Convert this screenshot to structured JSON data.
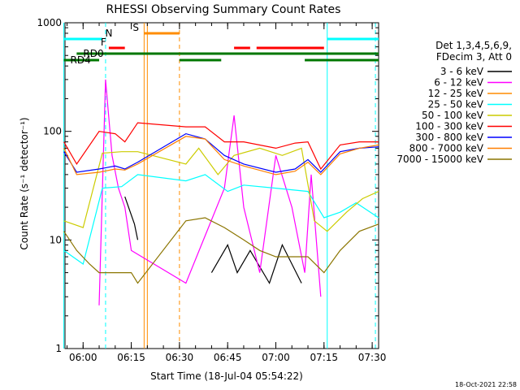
{
  "chart_data": {
    "type": "line",
    "title": "RHESSI Observing Summary Count Rates",
    "xlabel": "Start Time (18-Jul-04 05:54:22)",
    "ylabel": "Count Rate (s⁻¹ detector⁻¹)",
    "y_scale": "log",
    "ylim": [
      1,
      1000
    ],
    "xlim": [
      "05:54:22",
      "07:32:00"
    ],
    "x_ticks": [
      "06:00",
      "06:15",
      "06:30",
      "06:45",
      "07:00",
      "07:15",
      "07:30"
    ],
    "y_ticks": [
      "1",
      "10",
      "100",
      "1000"
    ],
    "legend_header": [
      "Det 1,3,4,5,6,9,",
      "FDecim 3, Att 0"
    ],
    "timestamp": "18-Oct-2021 22:58",
    "series": [
      {
        "name": "3 - 6 keV",
        "color": "#000000",
        "x": [
          "05:54",
          "06:05",
          "06:10",
          "06:13",
          "06:16",
          "06:17",
          "06:32",
          "06:40",
          "06:45",
          "06:48",
          "06:52",
          "06:58",
          "07:02",
          "07:08",
          "07:12",
          "07:14",
          "07:32"
        ],
        "y": [
          null,
          null,
          null,
          25,
          14,
          10,
          null,
          5,
          9,
          5,
          8,
          4,
          9,
          4,
          null,
          null,
          null
        ]
      },
      {
        "name": "6 - 12 keV",
        "color": "#ff00ff",
        "x": [
          "06:05",
          "06:07",
          "06:09",
          "06:11",
          "06:13",
          "06:15",
          "06:32",
          "06:44",
          "06:47",
          "06:50",
          "06:55",
          "07:00",
          "07:05",
          "07:09",
          "07:11",
          "07:14"
        ],
        "y": [
          2.5,
          300,
          60,
          30,
          20,
          8,
          4,
          30,
          140,
          20,
          5,
          60,
          20,
          5,
          40,
          3
        ]
      },
      {
        "name": "12 - 25 keV",
        "color": "#ff8c00",
        "x": [
          "05:54",
          "06:00",
          "06:05",
          "06:10",
          "06:15",
          "06:17"
        ],
        "y": [
          null,
          null,
          null,
          null,
          null,
          null
        ]
      },
      {
        "name": "25 - 50 keV",
        "color": "#00ffff",
        "x": [
          "05:54",
          "06:00",
          "06:06",
          "06:12",
          "06:17",
          "06:32",
          "06:38",
          "06:45",
          "06:50",
          "07:00",
          "07:10",
          "07:15",
          "07:20",
          "07:25",
          "07:32"
        ],
        "y": [
          8,
          6,
          30,
          31,
          40,
          35,
          40,
          28,
          32,
          30,
          28,
          16,
          18,
          22,
          16
        ]
      },
      {
        "name": "50 - 100 keV",
        "color": "#cccc00",
        "x": [
          "05:54",
          "06:00",
          "06:06",
          "06:12",
          "06:17",
          "06:32",
          "06:36",
          "06:42",
          "06:47",
          "06:55",
          "07:02",
          "07:08",
          "07:12",
          "07:16",
          "07:22",
          "07:27",
          "07:32"
        ],
        "y": [
          15,
          13,
          63,
          65,
          65,
          50,
          70,
          40,
          60,
          70,
          60,
          70,
          15,
          12,
          18,
          24,
          28
        ]
      },
      {
        "name": "100 - 300 keV",
        "color": "#ff0000",
        "x": [
          "05:54",
          "05:58",
          "06:05",
          "06:10",
          "06:13",
          "06:17",
          "06:32",
          "06:38",
          "06:44",
          "06:50",
          "07:00",
          "07:06",
          "07:10",
          "07:14",
          "07:20",
          "07:26",
          "07:32"
        ],
        "y": [
          80,
          50,
          100,
          95,
          80,
          120,
          110,
          110,
          80,
          80,
          70,
          78,
          80,
          45,
          75,
          80,
          80
        ]
      },
      {
        "name": "300 - 800 keV",
        "color": "#0000ff",
        "x": [
          "05:54",
          "05:58",
          "06:05",
          "06:10",
          "06:13",
          "06:17",
          "06:32",
          "06:38",
          "06:44",
          "06:50",
          "07:00",
          "07:06",
          "07:10",
          "07:14",
          "07:20",
          "07:26",
          "07:32"
        ],
        "y": [
          65,
          42,
          45,
          48,
          45,
          52,
          95,
          85,
          60,
          50,
          42,
          45,
          55,
          42,
          65,
          70,
          72
        ]
      },
      {
        "name": "800 - 7000 keV",
        "color": "#ff7f00",
        "x": [
          "05:54",
          "05:58",
          "06:05",
          "06:10",
          "06:13",
          "06:17",
          "06:32",
          "06:38",
          "06:44",
          "06:50",
          "07:00",
          "07:06",
          "07:10",
          "07:14",
          "07:20",
          "07:26",
          "07:32"
        ],
        "y": [
          70,
          40,
          42,
          45,
          44,
          50,
          90,
          85,
          55,
          48,
          40,
          43,
          52,
          40,
          62,
          70,
          75
        ]
      },
      {
        "name": "7000 - 15000 keV",
        "color": "#8b7500",
        "x": [
          "05:54",
          "05:58",
          "06:02",
          "06:05",
          "06:10",
          "06:15",
          "06:17",
          "06:32",
          "06:38",
          "06:44",
          "06:50",
          "06:55",
          "07:00",
          "07:05",
          "07:10",
          "07:15",
          "07:20",
          "07:26",
          "07:32"
        ],
        "y": [
          12,
          8,
          6,
          5,
          5,
          5,
          4,
          15,
          16,
          13,
          10,
          8,
          7,
          7,
          7,
          5,
          8,
          12,
          14
        ]
      }
    ],
    "flag_lines": [
      {
        "label": "N",
        "color": "#00ffff",
        "level": 1,
        "segments": [
          [
            "05:54",
            "06:06"
          ],
          [
            "07:16",
            "07:32"
          ]
        ]
      },
      {
        "label": "F",
        "color": "#ff0000",
        "level": 2,
        "segments": [
          [
            "06:08",
            "06:13"
          ],
          [
            "06:47",
            "06:52"
          ],
          [
            "06:54",
            "07:15"
          ]
        ]
      },
      {
        "label": "S",
        "color": "#ff8c00",
        "level": 0,
        "segments": [
          [
            "06:19",
            "06:30"
          ]
        ]
      },
      {
        "label": "RD0",
        "color": "#007700",
        "level": 3,
        "segments": [
          [
            "05:58",
            "06:30"
          ],
          [
            "06:30",
            "07:32"
          ]
        ]
      },
      {
        "label": "RD4",
        "color": "#007700",
        "level": 4,
        "segments": [
          [
            "05:54",
            "06:05"
          ],
          [
            "06:30",
            "06:43"
          ],
          [
            "07:09",
            "07:32"
          ]
        ]
      }
    ],
    "vlines": [
      {
        "time": "05:54",
        "color": "#00ffff",
        "style": "solid"
      },
      {
        "time": "06:07",
        "color": "#00ffff",
        "style": "dashed"
      },
      {
        "time": "06:19",
        "color": "#ff8c00",
        "style": "solid"
      },
      {
        "time": "06:20",
        "color": "#ff8c00",
        "style": "solid"
      },
      {
        "time": "06:30",
        "color": "#ff8c00",
        "style": "dashed"
      },
      {
        "time": "07:16",
        "color": "#00ffff",
        "style": "solid"
      },
      {
        "time": "07:31",
        "color": "#00ffff",
        "style": "dashed"
      }
    ],
    "colors": {
      "axis": "#000000",
      "background": "#ffffff",
      "green_marker": "#00ff00"
    }
  }
}
